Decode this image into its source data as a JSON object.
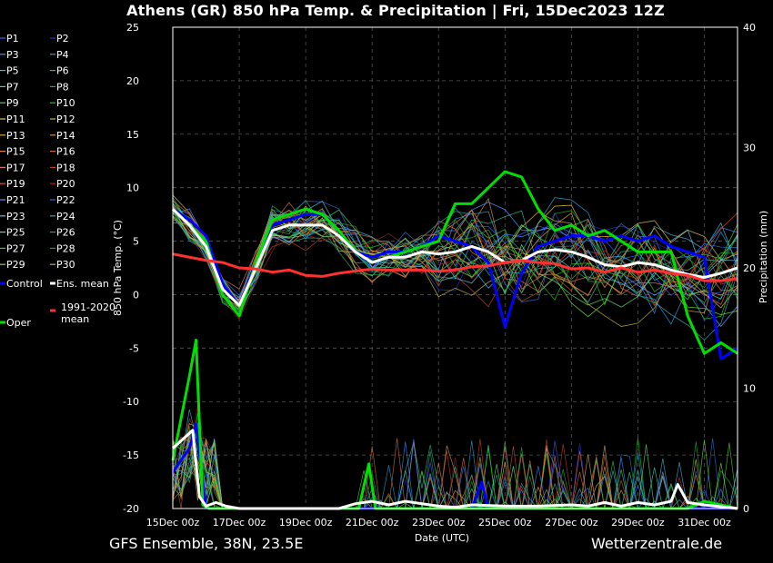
{
  "title": "Athens  (GR)  850 hPa Temp. & Precipitation | Fri, 15Dec2023 12Z",
  "footer_left": "GFS Ensemble, 38N, 23.5E",
  "footer_right": "Wetterzentrale.de",
  "chart_data": {
    "type": "line",
    "xlabel": "Date (UTC)",
    "ylabel": "850 hPa Temp. (°C)",
    "y2label": "Precipitation (mm)",
    "x_ticks": [
      "15Dec 00z",
      "17Dec 00z",
      "19Dec 00z",
      "21Dec 00z",
      "23Dec 00z",
      "25Dec 00z",
      "27Dec 00z",
      "29Dec 00z",
      "31Dec 00z"
    ],
    "x_range_days": [
      0,
      17
    ],
    "ylim": [
      -20,
      25
    ],
    "y_ticks": [
      "25",
      "20",
      "15",
      "10",
      "5",
      "0",
      "-5",
      "-10",
      "-15",
      "-20"
    ],
    "y2lim": [
      0,
      40
    ],
    "y2_ticks": [
      "40",
      "30",
      "20",
      "10",
      "0"
    ],
    "grid": true,
    "legend": [
      {
        "name": "P1",
        "color": "#3c5cff"
      },
      {
        "name": "P2",
        "color": "#3030c8"
      },
      {
        "name": "P3",
        "color": "#3c8cff"
      },
      {
        "name": "P4",
        "color": "#2aa0d8"
      },
      {
        "name": "P5",
        "color": "#40b8e0"
      },
      {
        "name": "P6",
        "color": "#30b890"
      },
      {
        "name": "P7",
        "color": "#40d8b0"
      },
      {
        "name": "P8",
        "color": "#20b040"
      },
      {
        "name": "P9",
        "color": "#50d050"
      },
      {
        "name": "P10",
        "color": "#18c818"
      },
      {
        "name": "P11",
        "color": "#e0c050"
      },
      {
        "name": "P12",
        "color": "#d8b040"
      },
      {
        "name": "P13",
        "color": "#e0a040"
      },
      {
        "name": "P14",
        "color": "#d09040"
      },
      {
        "name": "P15",
        "color": "#e08040"
      },
      {
        "name": "P16",
        "color": "#d07040"
      },
      {
        "name": "P17",
        "color": "#e07060"
      },
      {
        "name": "P18",
        "color": "#c04030"
      },
      {
        "name": "P19",
        "color": "#d05040"
      },
      {
        "name": "P20",
        "color": "#a02020"
      },
      {
        "name": "P21",
        "color": "#6090ff"
      },
      {
        "name": "P22",
        "color": "#3070d0"
      },
      {
        "name": "P23",
        "color": "#60c0e0"
      },
      {
        "name": "P24",
        "color": "#40a0b8"
      },
      {
        "name": "P25",
        "color": "#60e080"
      },
      {
        "name": "P26",
        "color": "#30a060"
      },
      {
        "name": "P27",
        "color": "#40c040"
      },
      {
        "name": "P28",
        "color": "#28a028"
      },
      {
        "name": "P29",
        "color": "#70e040"
      },
      {
        "name": "P30",
        "color": "#c0b040"
      },
      {
        "name": "Control",
        "color": "#0000ff"
      },
      {
        "name": "Ens. mean",
        "color": "#ffffff"
      },
      {
        "name": "Oper",
        "color": "#00e000"
      },
      {
        "name": "1991-2020 mean",
        "color": "#ff3030"
      }
    ],
    "series_temperature": [
      {
        "name": "Control",
        "x": [
          0,
          0.5,
          1,
          1.5,
          2,
          2.5,
          3,
          3.5,
          4,
          4.5,
          5,
          5.5,
          6,
          6.5,
          7,
          7.5,
          8,
          8.5,
          9,
          9.5,
          10,
          10.5,
          11,
          11.5,
          12,
          12.5,
          13,
          13.5,
          14,
          14.5,
          15,
          15.5,
          16,
          16.5,
          17
        ],
        "y": [
          8,
          7,
          5.5,
          1,
          -1,
          3,
          6.5,
          7,
          7.5,
          7.5,
          6,
          4,
          3.5,
          4,
          4,
          4.5,
          5.5,
          5,
          4.5,
          3,
          -3,
          2,
          4.5,
          5,
          5.5,
          5.5,
          5,
          5.5,
          5,
          5.5,
          4.5,
          4,
          3.5,
          -6,
          -5
        ]
      },
      {
        "name": "Oper",
        "x": [
          0,
          0.5,
          1,
          1.5,
          2,
          2.5,
          3,
          3.5,
          4,
          4.5,
          5,
          5.5,
          6,
          6.5,
          7,
          7.5,
          8,
          8.5,
          9,
          9.5,
          10,
          10.5,
          11,
          11.5,
          12,
          12.5,
          13,
          13.5,
          14,
          14.5,
          15,
          15.5,
          16,
          16.5,
          17
        ],
        "y": [
          8,
          6.5,
          5,
          0,
          -2,
          3,
          7,
          7.5,
          8,
          7.5,
          6,
          4,
          3,
          3.5,
          4,
          4.5,
          5,
          8.5,
          8.5,
          10,
          11.5,
          11,
          8,
          6,
          6.5,
          5.5,
          6,
          5,
          4,
          4,
          4,
          -2,
          -5.5,
          -4.5,
          -5.5
        ]
      },
      {
        "name": "Ens. mean",
        "x": [
          0,
          0.5,
          1,
          1.5,
          2,
          2.5,
          3,
          3.5,
          4,
          4.5,
          5,
          5.5,
          6,
          6.5,
          7,
          7.5,
          8,
          8.5,
          9,
          9.5,
          10,
          10.5,
          11,
          11.5,
          12,
          12.5,
          13,
          13.5,
          14,
          14.5,
          15,
          15.5,
          16,
          16.5,
          17
        ],
        "y": [
          8,
          6.5,
          4.5,
          0.5,
          -1,
          2.5,
          6,
          6.5,
          6.5,
          6.5,
          5.5,
          4,
          3,
          3.5,
          3.5,
          4,
          3.8,
          4,
          4.5,
          4,
          3,
          3.2,
          4,
          4.2,
          4,
          3.5,
          2.8,
          2.6,
          3,
          2.8,
          2.3,
          1.9,
          1.6,
          2,
          2.5
        ]
      },
      {
        "name": "1991-2020 mean",
        "x": [
          0,
          0.5,
          1,
          1.5,
          2,
          2.5,
          3,
          3.5,
          4,
          4.5,
          5,
          5.5,
          6,
          6.5,
          7,
          7.5,
          8,
          8.5,
          9,
          9.5,
          10,
          10.5,
          11,
          11.5,
          12,
          12.5,
          13,
          13.5,
          14,
          14.5,
          15,
          15.5,
          16,
          16.5,
          17
        ],
        "y": [
          3.8,
          3.5,
          3.2,
          3,
          2.5,
          2.4,
          2.1,
          2.3,
          1.8,
          1.7,
          2,
          2.2,
          2.4,
          2.3,
          2.3,
          2.3,
          2.2,
          2.3,
          2.6,
          2.7,
          3,
          3.2,
          3,
          2.9,
          2.4,
          2.5,
          2.1,
          2.5,
          2.1,
          2.3,
          2,
          1.8,
          1.3,
          1.3,
          1.5
        ]
      }
    ],
    "series_precipitation": [
      {
        "name": "Control",
        "x": [
          0,
          0.5,
          0.7,
          1,
          1.2,
          1.5,
          5,
          9,
          9.3,
          9.5,
          10,
          17
        ],
        "y": [
          3,
          5,
          7,
          0,
          0,
          0,
          0,
          0,
          2.2,
          0,
          0,
          0
        ]
      },
      {
        "name": "Oper",
        "x": [
          0,
          0.5,
          0.7,
          0.9,
          1.1,
          1.5,
          5,
          5.6,
          5.9,
          6.1,
          6.4,
          7,
          15.5,
          16,
          16.5,
          17
        ],
        "y": [
          4,
          11,
          14,
          0.3,
          0,
          0,
          0,
          0,
          3.7,
          0,
          0,
          0,
          0,
          0.6,
          0.3,
          0
        ]
      },
      {
        "name": "Ens. mean",
        "x": [
          0,
          0.4,
          0.6,
          0.8,
          1,
          1.3,
          1.6,
          2,
          5,
          5.5,
          6,
          6.5,
          7,
          8,
          8.5,
          9,
          10,
          11,
          12,
          12.5,
          13,
          13.5,
          14,
          14.5,
          15,
          15.2,
          15.5,
          16,
          17
        ],
        "y": [
          5,
          6,
          6.5,
          1,
          0.2,
          0.5,
          0.2,
          0,
          0,
          0.4,
          0.6,
          0.3,
          0.6,
          0.2,
          0.1,
          0.3,
          0.2,
          0.2,
          0.3,
          0.2,
          0.5,
          0.2,
          0.5,
          0.3,
          0.6,
          2,
          0.5,
          0.3,
          0
        ]
      }
    ]
  }
}
